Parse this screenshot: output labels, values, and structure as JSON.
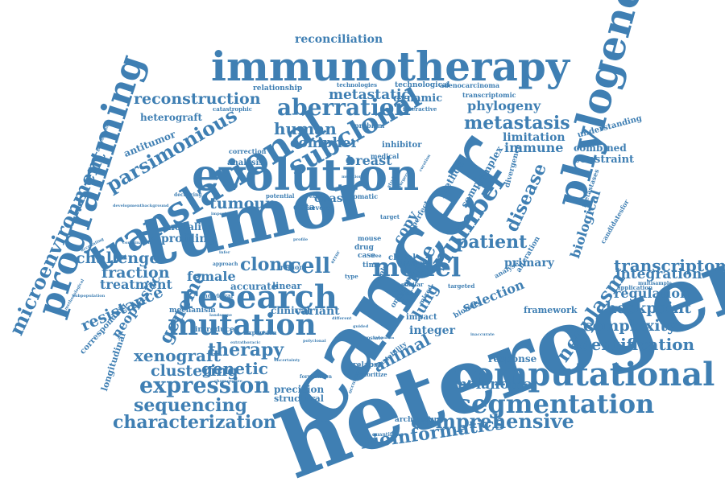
{
  "theme": {
    "word_color": "#3f7fb3",
    "background": "#ffffff"
  },
  "words": [
    "heterogeneity",
    "cancer",
    "tumor",
    "immunotherapy",
    "evolution",
    "translational",
    "phylogenetic",
    "programming",
    "computational",
    "research",
    "mutation",
    "segmentation",
    "subclonal",
    "aberration",
    "microenvironment",
    "parsimonious",
    "expression",
    "model",
    "number",
    "comprehensive",
    "characterization",
    "bioinformatics",
    "sequencing",
    "xenograft",
    "clustering",
    "genetic",
    "therapy",
    "patient",
    "metastasis",
    "reconstruction",
    "transcriptome",
    "identification",
    "complexity",
    "checkpoint",
    "integration",
    "regulation",
    "neoplasm",
    "disease",
    "single",
    "cell",
    "clone",
    "genome",
    "resistance",
    "fraction",
    "challenge",
    "treatment",
    "neoplastic",
    "animal",
    "human",
    "tumour",
    "conipher",
    "breast",
    "metastatic",
    "immune",
    "phylogeny",
    "biological",
    "selection",
    "copy",
    "lung",
    "integer",
    "melanoma",
    "response",
    "reconciliation",
    "heterograft",
    "antitumor",
    "profiling",
    "modality",
    "female",
    "variant",
    "clinical",
    "precision",
    "structural",
    "introduce",
    "mechanism",
    "longitudinal",
    "corresponding",
    "primary",
    "framework",
    "constraint",
    "combined",
    "limitation",
    "understanding",
    "technological",
    "adenocarcinoma",
    "transcriptomic",
    "dynamic",
    "interactive",
    "relationship",
    "technologies",
    "catastrophic",
    "inhibitor",
    "medical",
    "problem",
    "correction",
    "analysis",
    "deciforing",
    "development",
    "combination",
    "subpopulation",
    "methodological",
    "accurate",
    "linear",
    "approach",
    "expansion",
    "extrathoracic",
    "uncertainty",
    "polyclonal",
    "prostate",
    "guided",
    "association",
    "different",
    "relapse",
    "prioritize",
    "instability",
    "architecture",
    "quantifying",
    "impact",
    "method",
    "sample",
    "complex",
    "divergence",
    "metastases",
    "application",
    "candidatesfor",
    "snvs",
    "current",
    "male",
    "higher",
    "similar",
    "targeted",
    "mixed",
    "alteration",
    "analyse",
    "inaccurate",
    "biology",
    "drug",
    "case",
    "time",
    "tree",
    "perfect",
    "clonal",
    "target",
    "mouse",
    "data",
    "cnas",
    "somatic",
    "several",
    "exhibit",
    "potential",
    "important",
    "surgery",
    "studies",
    "multisample",
    "accounting",
    "background",
    "formulation",
    "characterize",
    "infer",
    "profile",
    "type",
    "error",
    "region",
    "individual",
    "landscape",
    "heterogeneous",
    "occurrence",
    "oncogenic",
    "evolu",
    "mulation",
    "curation"
  ]
}
